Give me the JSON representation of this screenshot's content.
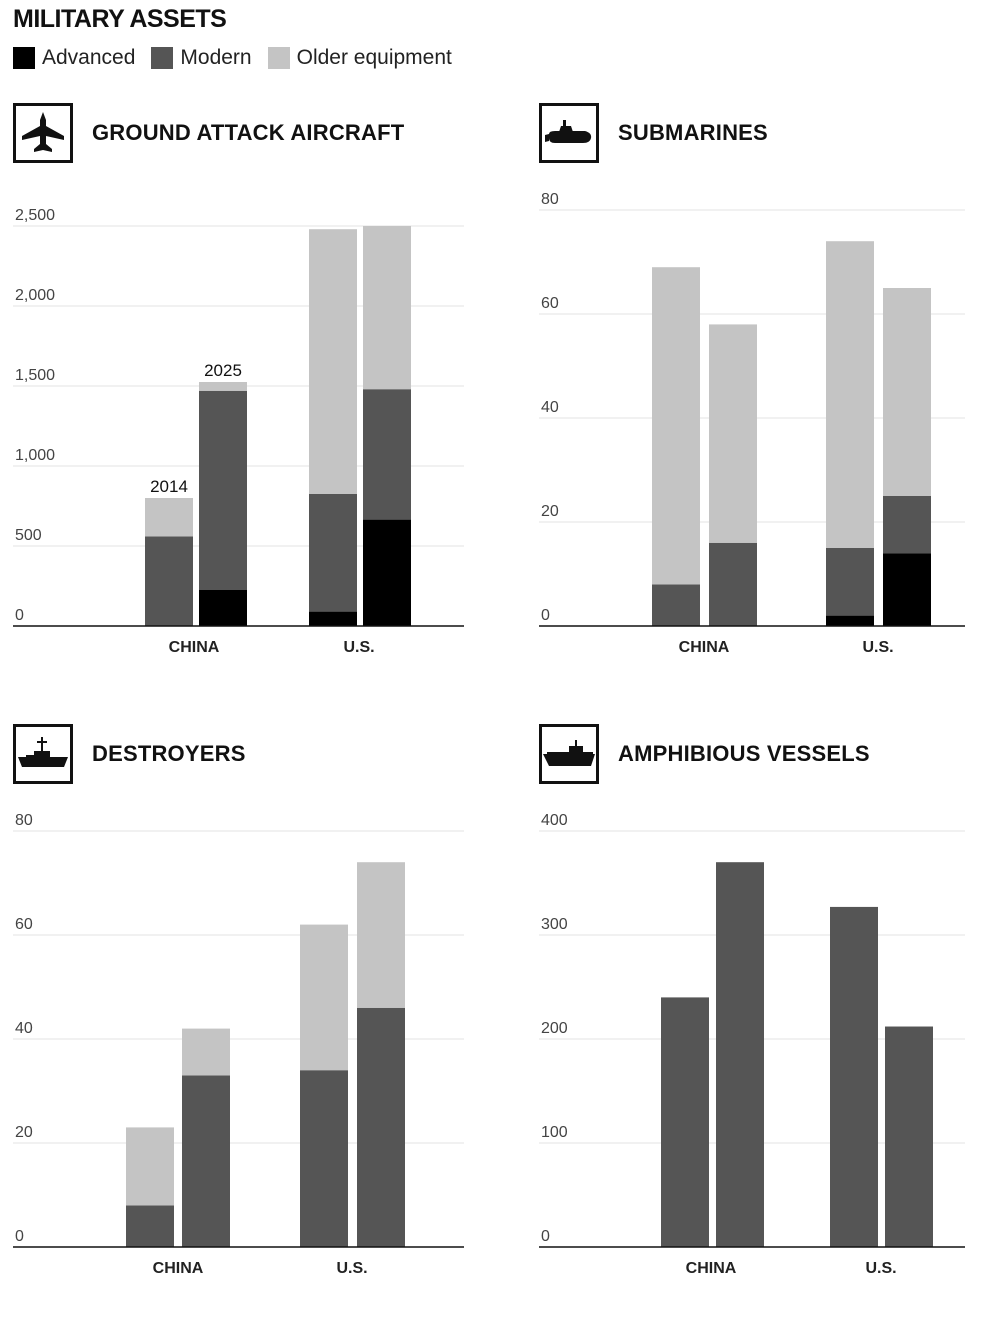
{
  "header": {
    "title": "MILITARY ASSETS"
  },
  "legend": [
    {
      "label": "Advanced",
      "color": "#000000"
    },
    {
      "label": "Modern",
      "color": "#555555"
    },
    {
      "label": "Older equipment",
      "color": "#c4c4c4"
    }
  ],
  "chart_data": [
    {
      "type": "bar",
      "stacked": true,
      "title": "GROUND ATTACK AIRCRAFT",
      "icon": "fighter-jet-icon",
      "categories": [
        "CHINA",
        "U.S."
      ],
      "bar_labels": [
        "2014",
        "2025"
      ],
      "ylim": [
        0,
        2500
      ],
      "yticks": [
        0,
        500,
        1000,
        1500,
        2000,
        2500
      ],
      "ytick_labels": [
        "0",
        "500",
        "1,000",
        "1,500",
        "2,000",
        "2,500"
      ],
      "grid": true,
      "bars": [
        {
          "category": "CHINA",
          "year": "2014",
          "advanced": 0,
          "modern": 560,
          "older": 240
        },
        {
          "category": "CHINA",
          "year": "2025",
          "advanced": 225,
          "modern": 1245,
          "older": 55
        },
        {
          "category": "U.S.",
          "year": "2014",
          "advanced": 90,
          "modern": 735,
          "older": 1655
        },
        {
          "category": "U.S.",
          "year": "2025",
          "advanced": 665,
          "modern": 815,
          "older": 1020
        }
      ]
    },
    {
      "type": "bar",
      "stacked": true,
      "title": "SUBMARINES",
      "icon": "submarine-icon",
      "categories": [
        "CHINA",
        "U.S."
      ],
      "ylim": [
        0,
        80
      ],
      "yticks": [
        0,
        20,
        40,
        60,
        80
      ],
      "ytick_labels": [
        "0",
        "20",
        "40",
        "60",
        "80"
      ],
      "grid": true,
      "bars": [
        {
          "category": "CHINA",
          "year": "2014",
          "advanced": 0,
          "modern": 8,
          "older": 61
        },
        {
          "category": "CHINA",
          "year": "2025",
          "advanced": 0,
          "modern": 16,
          "older": 42
        },
        {
          "category": "U.S.",
          "year": "2014",
          "advanced": 2,
          "modern": 13,
          "older": 59
        },
        {
          "category": "U.S.",
          "year": "2025",
          "advanced": 14,
          "modern": 11,
          "older": 40
        }
      ]
    },
    {
      "type": "bar",
      "stacked": true,
      "title": "DESTROYERS",
      "icon": "destroyer-ship-icon",
      "categories": [
        "CHINA",
        "U.S."
      ],
      "ylim": [
        0,
        80
      ],
      "yticks": [
        0,
        20,
        40,
        60,
        80
      ],
      "ytick_labels": [
        "0",
        "20",
        "40",
        "60",
        "80"
      ],
      "grid": true,
      "bars": [
        {
          "category": "CHINA",
          "year": "2014",
          "advanced": 0,
          "modern": 8,
          "older": 15
        },
        {
          "category": "CHINA",
          "year": "2025",
          "advanced": 0,
          "modern": 33,
          "older": 9
        },
        {
          "category": "U.S.",
          "year": "2014",
          "advanced": 0,
          "modern": 34,
          "older": 28
        },
        {
          "category": "U.S.",
          "year": "2025",
          "advanced": 0,
          "modern": 46,
          "older": 28
        }
      ]
    },
    {
      "type": "bar",
      "stacked": true,
      "title": "AMPHIBIOUS VESSELS",
      "icon": "amphibious-ship-icon",
      "categories": [
        "CHINA",
        "U.S."
      ],
      "ylim": [
        0,
        400
      ],
      "yticks": [
        0,
        100,
        200,
        300,
        400
      ],
      "ytick_labels": [
        "0",
        "100",
        "200",
        "300",
        "400"
      ],
      "grid": true,
      "bars": [
        {
          "category": "CHINA",
          "year": "2014",
          "advanced": 0,
          "modern": 240,
          "older": 0
        },
        {
          "category": "CHINA",
          "year": "2025",
          "advanced": 0,
          "modern": 370,
          "older": 0
        },
        {
          "category": "U.S.",
          "year": "2014",
          "advanced": 0,
          "modern": 327,
          "older": 0
        },
        {
          "category": "U.S.",
          "year": "2025",
          "advanced": 0,
          "modern": 212,
          "older": 0
        }
      ]
    }
  ]
}
